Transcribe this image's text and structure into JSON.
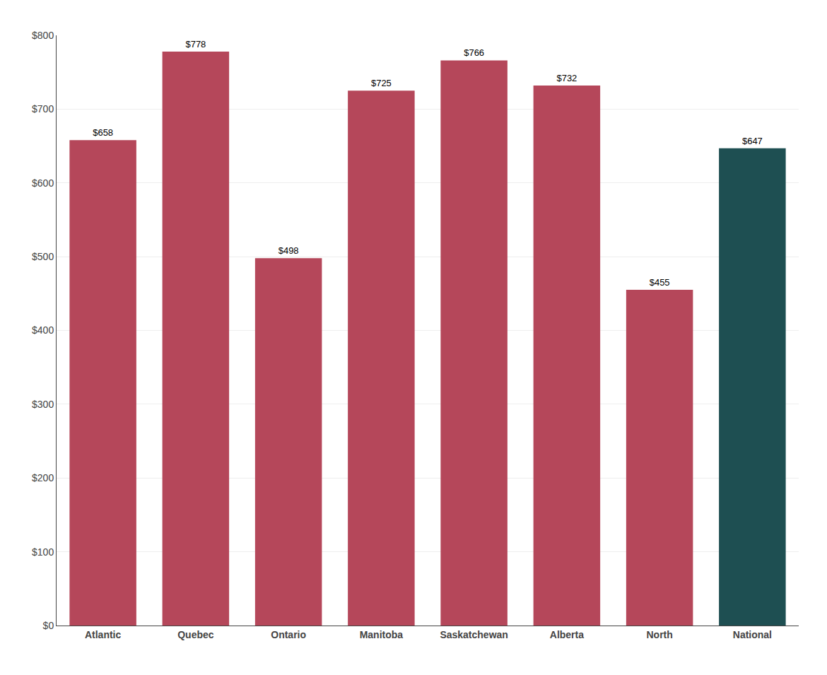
{
  "chart_data": {
    "type": "bar",
    "categories": [
      "Atlantic",
      "Quebec",
      "Ontario",
      "Manitoba",
      "Saskatchewan",
      "Alberta",
      "North",
      "National"
    ],
    "values": [
      658,
      778,
      498,
      725,
      766,
      732,
      455,
      647
    ],
    "value_labels": [
      "$658",
      "$778",
      "$498",
      "$725",
      "$766",
      "$732",
      "$455",
      "$647"
    ],
    "colors": [
      "#b5475a",
      "#b5475a",
      "#b5475a",
      "#b5475a",
      "#b5475a",
      "#b5475a",
      "#b5475a",
      "#1e4f52"
    ],
    "ylim": [
      0,
      800
    ],
    "yticks": [
      {
        "value": 0,
        "label": "$0"
      },
      {
        "value": 100,
        "label": "$100"
      },
      {
        "value": 200,
        "label": "$200"
      },
      {
        "value": 300,
        "label": "$300"
      },
      {
        "value": 400,
        "label": "$400"
      },
      {
        "value": 500,
        "label": "$500"
      },
      {
        "value": 600,
        "label": "$600"
      },
      {
        "value": 700,
        "label": "$700"
      },
      {
        "value": 800,
        "label": "$800"
      }
    ],
    "grid": true,
    "data_labels": true
  }
}
